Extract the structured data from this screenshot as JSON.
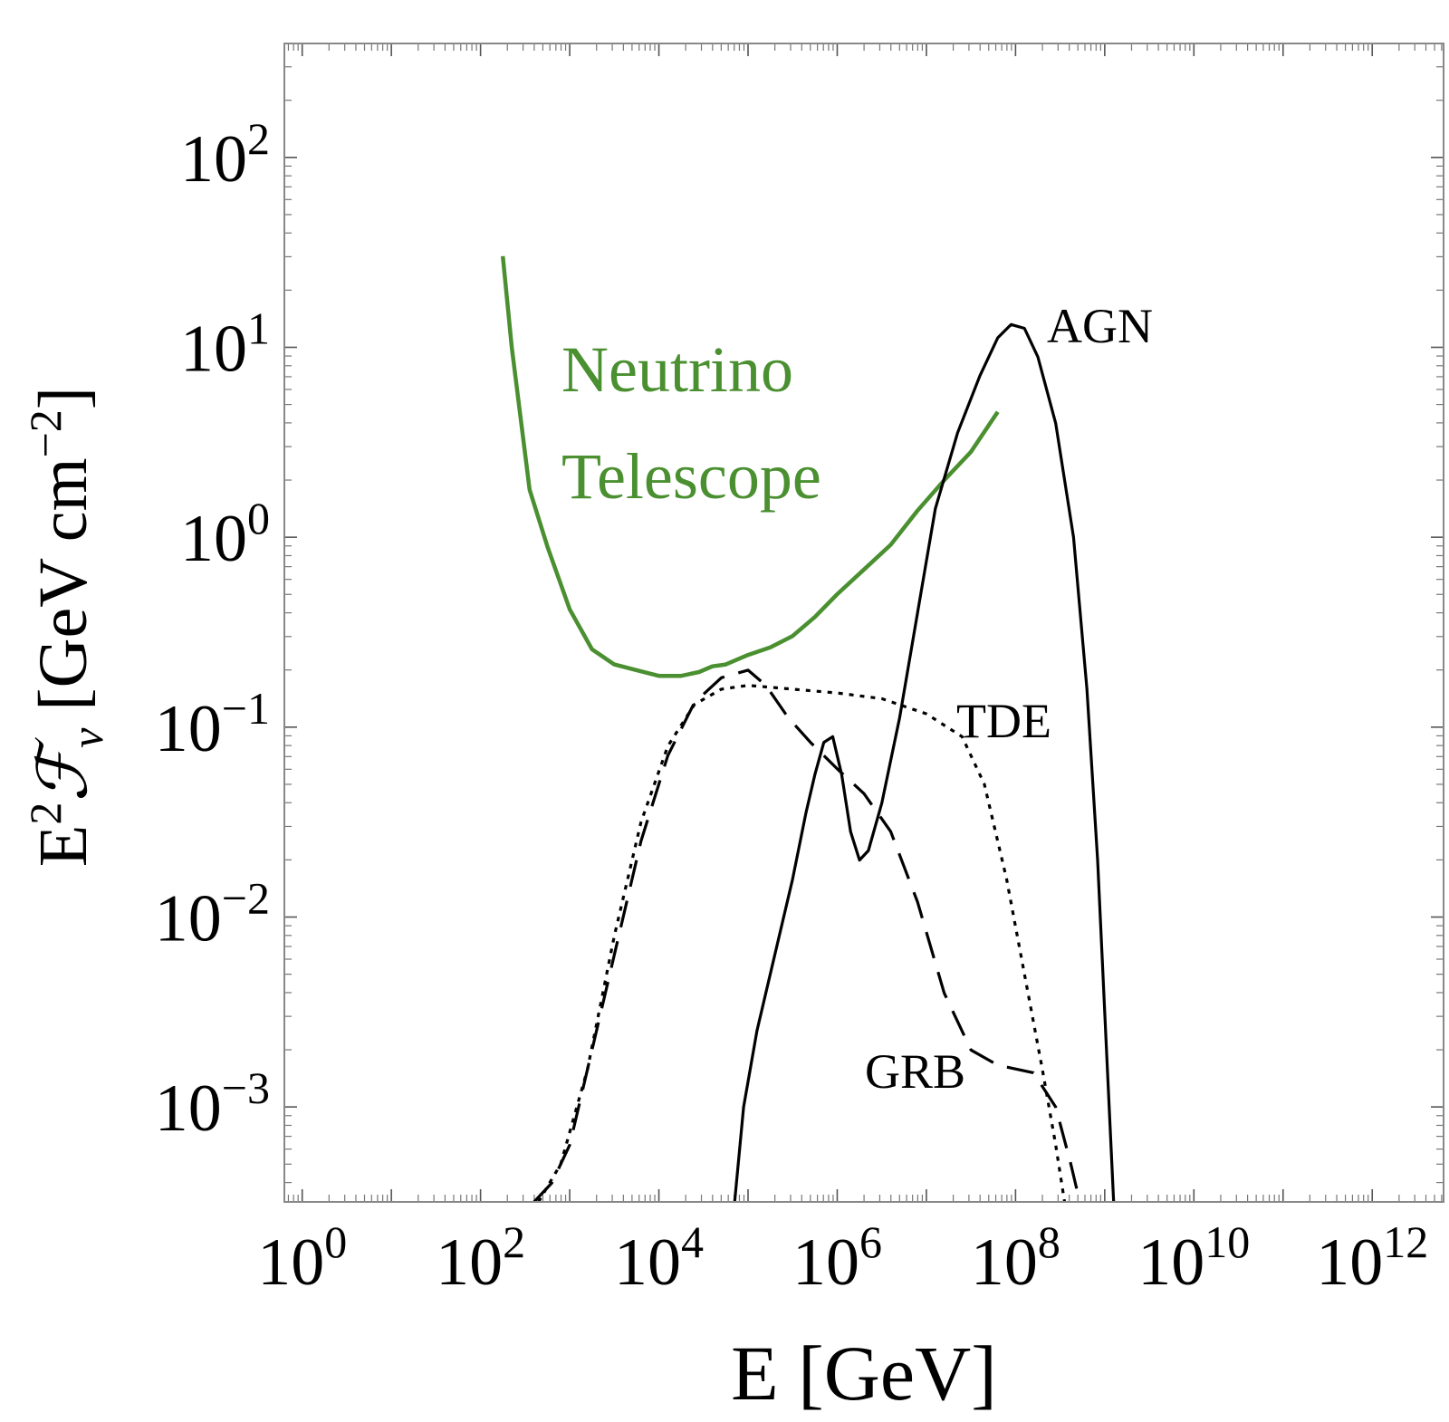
{
  "chart_data": {
    "type": "line",
    "title": "",
    "xlabel": "E [GeV]",
    "ylabel_parts": [
      "E",
      "2",
      "ℱ",
      "ν",
      " [GeV cm",
      "−2",
      "]"
    ],
    "xscale": "log",
    "yscale": "log",
    "xlim_log10": [
      -0.2,
      12.8
    ],
    "ylim_log10": [
      -3.5,
      2.6
    ],
    "x_ticks": [
      {
        "base": "10",
        "exp": "0",
        "log": 0
      },
      {
        "base": "10",
        "exp": "2",
        "log": 2
      },
      {
        "base": "10",
        "exp": "4",
        "log": 4
      },
      {
        "base": "10",
        "exp": "6",
        "log": 6
      },
      {
        "base": "10",
        "exp": "8",
        "log": 8
      },
      {
        "base": "10",
        "exp": "10",
        "log": 10
      },
      {
        "base": "10",
        "exp": "12",
        "log": 12
      }
    ],
    "y_ticks": [
      {
        "base": "10",
        "exp": "−3",
        "log": -3
      },
      {
        "base": "10",
        "exp": "−2",
        "log": -2
      },
      {
        "base": "10",
        "exp": "−1",
        "log": -1
      },
      {
        "base": "10",
        "exp": "0",
        "log": 0
      },
      {
        "base": "10",
        "exp": "1",
        "log": 1
      },
      {
        "base": "10",
        "exp": "2",
        "log": 2
      }
    ],
    "series": [
      {
        "name": "Neutrino Telescope",
        "label_lines": [
          "Neutrino",
          "Telescope"
        ],
        "color": "#4a8f30",
        "dash": "solid",
        "points_log10": [
          [
            2.25,
            1.48
          ],
          [
            2.35,
            1.0
          ],
          [
            2.55,
            0.25
          ],
          [
            2.75,
            -0.05
          ],
          [
            3.0,
            -0.38
          ],
          [
            3.25,
            -0.59
          ],
          [
            3.5,
            -0.67
          ],
          [
            3.75,
            -0.7
          ],
          [
            4.0,
            -0.73
          ],
          [
            4.25,
            -0.73
          ],
          [
            4.45,
            -0.71
          ],
          [
            4.6,
            -0.68
          ],
          [
            4.75,
            -0.67
          ],
          [
            5.0,
            -0.62
          ],
          [
            5.25,
            -0.58
          ],
          [
            5.5,
            -0.52
          ],
          [
            5.75,
            -0.42
          ],
          [
            6.0,
            -0.3
          ],
          [
            6.3,
            -0.17
          ],
          [
            6.6,
            -0.04
          ],
          [
            6.9,
            0.14
          ],
          [
            7.2,
            0.3
          ],
          [
            7.5,
            0.45
          ],
          [
            7.8,
            0.66
          ]
        ]
      },
      {
        "name": "AGN",
        "label_lines": [
          "AGN"
        ],
        "color": "#000000",
        "dash": "solid",
        "points_log10": [
          [
            4.85,
            -3.5
          ],
          [
            4.95,
            -3.0
          ],
          [
            5.1,
            -2.6
          ],
          [
            5.3,
            -2.2
          ],
          [
            5.5,
            -1.8
          ],
          [
            5.65,
            -1.45
          ],
          [
            5.75,
            -1.25
          ],
          [
            5.85,
            -1.08
          ],
          [
            5.95,
            -1.05
          ],
          [
            6.05,
            -1.25
          ],
          [
            6.15,
            -1.55
          ],
          [
            6.25,
            -1.7
          ],
          [
            6.35,
            -1.65
          ],
          [
            6.5,
            -1.4
          ],
          [
            6.7,
            -0.95
          ],
          [
            6.9,
            -0.4
          ],
          [
            7.1,
            0.15
          ],
          [
            7.35,
            0.55
          ],
          [
            7.6,
            0.85
          ],
          [
            7.8,
            1.05
          ],
          [
            7.95,
            1.12
          ],
          [
            8.1,
            1.1
          ],
          [
            8.25,
            0.95
          ],
          [
            8.45,
            0.6
          ],
          [
            8.65,
            0.0
          ],
          [
            8.8,
            -0.8
          ],
          [
            8.92,
            -1.7
          ],
          [
            9.02,
            -2.7
          ],
          [
            9.1,
            -3.5
          ]
        ]
      },
      {
        "name": "GRB",
        "label_lines": [
          "GRB"
        ],
        "color": "#000000",
        "dash": "dashed",
        "points_log10": [
          [
            2.6,
            -3.5
          ],
          [
            2.8,
            -3.4
          ],
          [
            3.0,
            -3.2
          ],
          [
            3.2,
            -2.8
          ],
          [
            3.5,
            -2.2
          ],
          [
            3.8,
            -1.6
          ],
          [
            4.1,
            -1.15
          ],
          [
            4.4,
            -0.87
          ],
          [
            4.7,
            -0.74
          ],
          [
            5.0,
            -0.7
          ],
          [
            5.2,
            -0.78
          ],
          [
            5.45,
            -0.95
          ],
          [
            5.7,
            -1.08
          ],
          [
            6.0,
            -1.22
          ],
          [
            6.3,
            -1.35
          ],
          [
            6.6,
            -1.55
          ],
          [
            6.9,
            -1.92
          ],
          [
            7.2,
            -2.4
          ],
          [
            7.5,
            -2.7
          ],
          [
            7.8,
            -2.78
          ],
          [
            8.2,
            -2.82
          ],
          [
            8.45,
            -3.0
          ],
          [
            8.62,
            -3.3
          ],
          [
            8.72,
            -3.5
          ]
        ]
      },
      {
        "name": "TDE",
        "label_lines": [
          "TDE"
        ],
        "color": "#000000",
        "dash": "dotted",
        "points_log10": [
          [
            2.65,
            -3.5
          ],
          [
            2.9,
            -3.3
          ],
          [
            3.2,
            -2.8
          ],
          [
            3.5,
            -2.1
          ],
          [
            3.8,
            -1.5
          ],
          [
            4.1,
            -1.1
          ],
          [
            4.4,
            -0.88
          ],
          [
            4.7,
            -0.8
          ],
          [
            5.0,
            -0.78
          ],
          [
            5.5,
            -0.8
          ],
          [
            6.0,
            -0.82
          ],
          [
            6.5,
            -0.85
          ],
          [
            7.0,
            -0.93
          ],
          [
            7.4,
            -1.05
          ],
          [
            7.65,
            -1.3
          ],
          [
            7.9,
            -1.8
          ],
          [
            8.1,
            -2.3
          ],
          [
            8.3,
            -2.8
          ],
          [
            8.45,
            -3.2
          ],
          [
            8.55,
            -3.5
          ]
        ]
      }
    ]
  }
}
